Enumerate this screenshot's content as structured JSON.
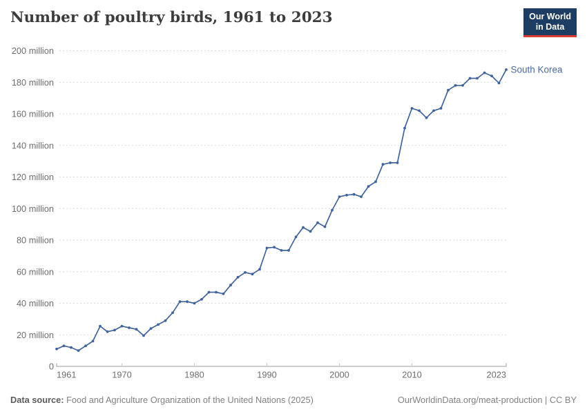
{
  "header": {
    "title": "Number of poultry birds, 1961 to 2023"
  },
  "logo": {
    "line1": "Our World",
    "line2": "in Data",
    "bg_color": "#1d3d63",
    "accent_color": "#dc3c31"
  },
  "chart_data": {
    "type": "line",
    "title": "Number of poultry birds, 1961 to 2023",
    "ylabel": "",
    "xlabel": "",
    "unit": "million birds",
    "grid": "dashed-horizontal",
    "legend_position": "end-of-line-label",
    "xlim": [
      1961,
      2023
    ],
    "ylim": [
      0,
      200
    ],
    "xticks": [
      1961,
      1970,
      1980,
      1990,
      2000,
      2010,
      2023
    ],
    "yticks": [
      0,
      20,
      40,
      60,
      80,
      100,
      120,
      140,
      160,
      180,
      200
    ],
    "ytick_suffix": " million",
    "ytick_zero_label": "0",
    "series": [
      {
        "name": "South Korea",
        "color": "#41639c",
        "label_color": "#4c6a9c",
        "x": [
          1961,
          1962,
          1963,
          1964,
          1965,
          1966,
          1967,
          1968,
          1969,
          1970,
          1971,
          1972,
          1973,
          1974,
          1975,
          1976,
          1977,
          1978,
          1979,
          1980,
          1981,
          1982,
          1983,
          1984,
          1985,
          1986,
          1987,
          1988,
          1989,
          1990,
          1991,
          1992,
          1993,
          1994,
          1995,
          1996,
          1997,
          1998,
          1999,
          2000,
          2001,
          2002,
          2003,
          2004,
          2005,
          2006,
          2007,
          2008,
          2009,
          2010,
          2011,
          2012,
          2013,
          2014,
          2015,
          2016,
          2017,
          2018,
          2019,
          2020,
          2021,
          2022,
          2023
        ],
        "values": [
          11,
          13,
          12,
          10,
          13,
          16,
          25.5,
          22,
          23,
          25.5,
          24.5,
          23.5,
          19.5,
          24,
          26.5,
          29,
          34,
          41,
          41,
          40,
          42.5,
          47,
          47,
          46,
          51.5,
          56.5,
          59.5,
          58.5,
          61.5,
          75,
          75.5,
          73.5,
          73.5,
          82,
          88,
          85.5,
          91,
          88.5,
          99,
          107.5,
          108.5,
          109,
          107.5,
          114,
          117,
          128,
          129,
          129,
          151,
          163.5,
          162,
          157.5,
          162,
          163.5,
          175,
          178,
          178,
          182.5,
          182.5,
          186,
          184,
          179.5,
          188
        ]
      }
    ]
  },
  "footer": {
    "source_label": "Data source:",
    "source_text": " Food and Agriculture Organization of the United Nations (2025)",
    "link_text": "OurWorldinData.org/meat-production | CC BY"
  }
}
